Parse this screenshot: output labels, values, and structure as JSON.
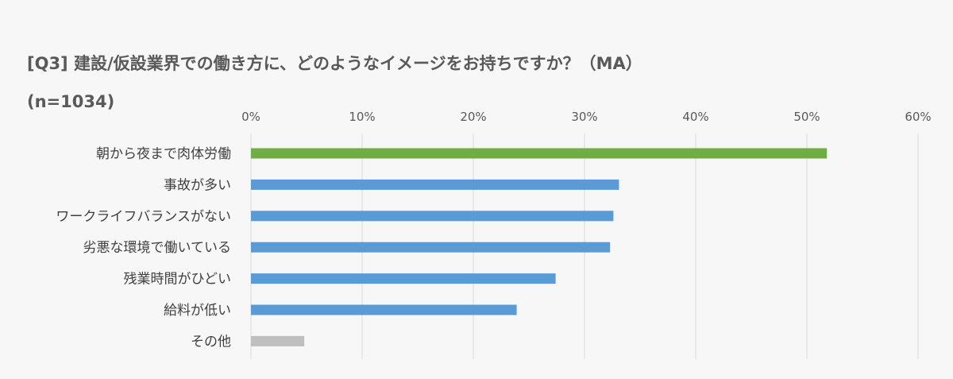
{
  "title": "[Q3] 建設/仮設業界での働き方に、どのようなイメージをお持ちですか？（MA）",
  "subtitle": "(n=1034)",
  "chart_data": {
    "type": "bar",
    "orientation": "horizontal",
    "title": "[Q3] 建設/仮設業界での働き方に、どのようなイメージをお持ちですか？（MA）",
    "subtitle": "(n=1034)",
    "xlim": [
      0,
      60
    ],
    "xticks": [
      "0%",
      "10%",
      "20%",
      "30%",
      "40%",
      "50%",
      "60%"
    ],
    "grid": true,
    "categories": [
      "朝から夜まで肉体労働",
      "事故が多い",
      "ワークライフバランスがない",
      "劣悪な環境で働いている",
      "残業時間がひどい",
      "給料が低い",
      "その他"
    ],
    "values": [
      51.8,
      33.1,
      32.6,
      32.3,
      27.4,
      23.9,
      4.8
    ],
    "colors": [
      "#70ad47",
      "#5b9bd5",
      "#5b9bd5",
      "#5b9bd5",
      "#5b9bd5",
      "#5b9bd5",
      "#bfbfbf"
    ]
  }
}
